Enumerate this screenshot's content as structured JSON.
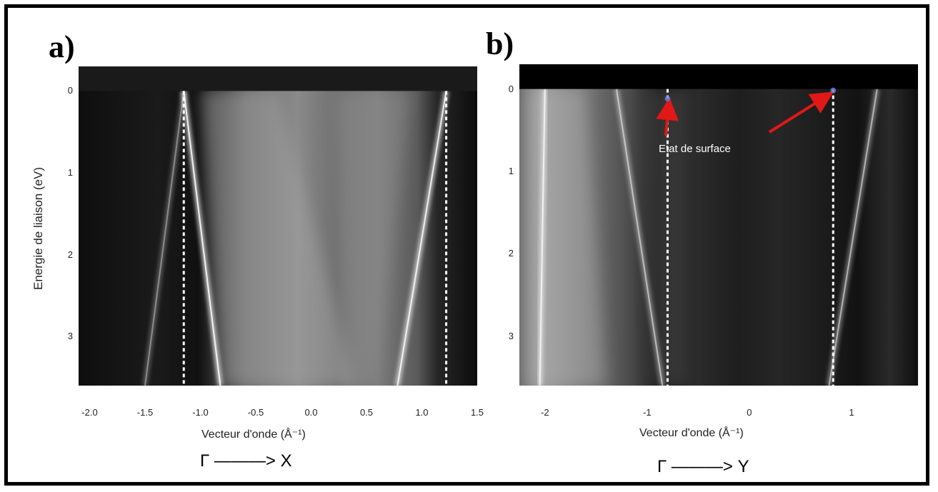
{
  "chart_data": [
    {
      "type": "heatmap",
      "panel_label": "a)",
      "xlabel": "Vecteur d'onde (Å⁻¹)",
      "ylabel": "Energie de liaison (eV)",
      "direction_label": "Γ ———> X",
      "xlim": [
        -2.1,
        1.5
      ],
      "ylim": [
        3.6,
        -0.3
      ],
      "x_ticks": [
        "-2.0",
        "-1.5",
        "-1.0",
        "-0.5",
        "0.0",
        "0.5",
        "1.0",
        "1.5"
      ],
      "y_ticks": [
        "0",
        "1",
        "2",
        "3"
      ],
      "dashed_lines_x": [
        -1.15,
        1.22
      ],
      "bands": [
        {
          "x_top": -1.15,
          "x_bottom": -0.82,
          "intensity": 0.85
        },
        {
          "x_top": -1.15,
          "x_bottom": -1.5,
          "intensity": 0.35
        },
        {
          "x_top": 1.22,
          "x_bottom": 0.78,
          "intensity": 0.8
        }
      ]
    },
    {
      "type": "heatmap",
      "panel_label": "b)",
      "xlabel": "Vecteur d'onde (Å⁻¹)",
      "ylabel": "",
      "direction_label": "Γ ———> Y",
      "xlim": [
        -2.25,
        1.65
      ],
      "ylim": [
        3.6,
        -0.3
      ],
      "x_ticks": [
        "-2",
        "-1",
        "0",
        "1"
      ],
      "y_ticks": [
        "0",
        "1",
        "2",
        "3"
      ],
      "dashed_lines_x": [
        -0.8,
        0.82
      ],
      "annotation": "Etat de surface",
      "arrow_targets": [
        {
          "x": -0.8,
          "y": 0.1
        },
        {
          "x": 0.82,
          "y": 0.0
        }
      ],
      "bands": [
        {
          "x_top": -1.3,
          "x_bottom": -0.85,
          "intensity": 0.5
        },
        {
          "x_top": 1.25,
          "x_bottom": 0.78,
          "intensity": 0.5
        },
        {
          "x_top": -2.0,
          "x_bottom": -2.05,
          "intensity": 0.7
        }
      ]
    }
  ]
}
